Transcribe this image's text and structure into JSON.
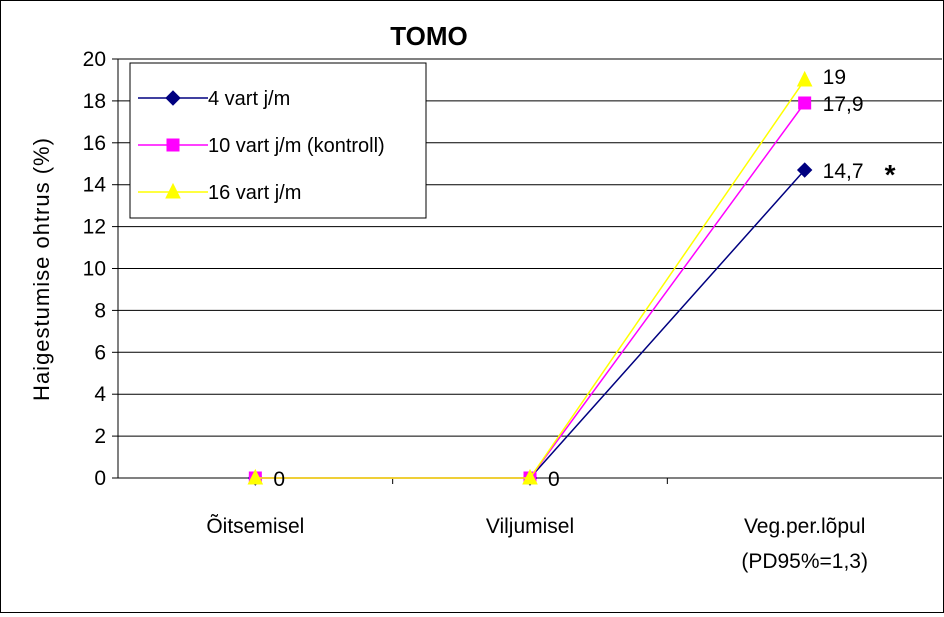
{
  "chart_data": {
    "type": "line",
    "title": "TOMO",
    "xlabel": "",
    "ylabel": "Haigestumise ohtrus (%)",
    "categories": [
      [
        "Õitsemisel"
      ],
      [
        "Viljumisel"
      ],
      [
        "Veg.per.lõpul",
        "(PD95%=1,3)"
      ]
    ],
    "ylim": [
      0,
      20
    ],
    "yticks": [
      0,
      2,
      4,
      6,
      8,
      10,
      12,
      14,
      16,
      18,
      20
    ],
    "grid": true,
    "legend_position": "top-left",
    "series": [
      {
        "name": "4 vart j/m",
        "values": [
          0,
          0,
          14.7
        ],
        "color": "#000080",
        "marker": "diamond"
      },
      {
        "name": "10 vart j/m (kontroll)",
        "values": [
          0,
          0,
          17.9
        ],
        "color": "#FF00FF",
        "marker": "square"
      },
      {
        "name": "16 vart j/m",
        "values": [
          0,
          0,
          19
        ],
        "color": "#FFFF00",
        "marker": "triangle"
      }
    ],
    "data_labels": [
      {
        "category_index": 0,
        "text": "0"
      },
      {
        "category_index": 1,
        "text": "0"
      },
      {
        "category_index": 2,
        "series_index": 0,
        "text": "14,7"
      },
      {
        "category_index": 2,
        "series_index": 1,
        "text": "17,9"
      },
      {
        "category_index": 2,
        "series_index": 2,
        "text": "19"
      }
    ],
    "annotations": [
      {
        "category_index": 2,
        "series_index": 0,
        "text": "*"
      }
    ]
  }
}
